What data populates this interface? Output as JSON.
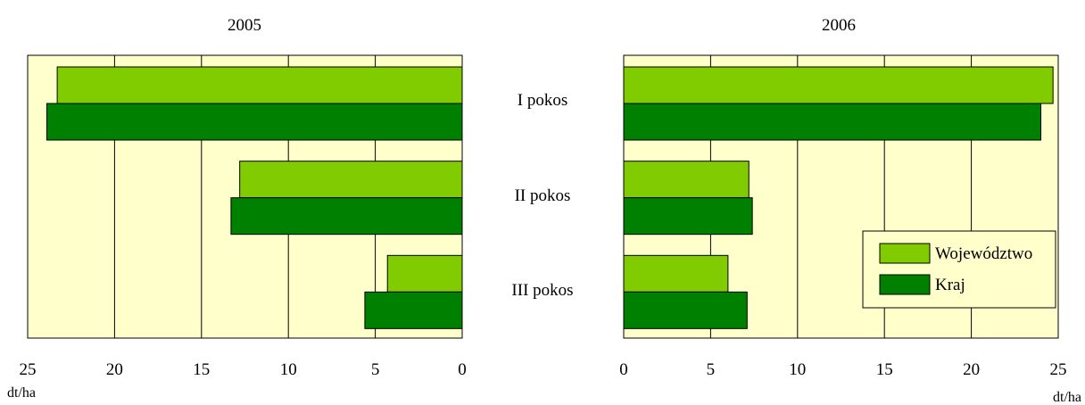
{
  "chart_data": [
    {
      "type": "bar",
      "orientation": "horizontal",
      "title": "2005",
      "categories": [
        "I pokos",
        "II pokos",
        "III pokos"
      ],
      "series": [
        {
          "name": "Województwo",
          "values": [
            23.3,
            12.8,
            4.3
          ],
          "color": "#80cc00"
        },
        {
          "name": "Kraj",
          "values": [
            23.9,
            13.3,
            5.6
          ],
          "color": "#008000"
        }
      ],
      "xlim": [
        25,
        0
      ],
      "xticks": [
        "25",
        "20",
        "15",
        "10",
        "5",
        "0"
      ],
      "unit": "dt/ha",
      "grid": true,
      "background": "#ffffcc"
    },
    {
      "type": "bar",
      "orientation": "horizontal",
      "title": "2006",
      "categories": [
        "I pokos",
        "II pokos",
        "III pokos"
      ],
      "series": [
        {
          "name": "Województwo",
          "values": [
            24.7,
            7.2,
            6.0
          ],
          "color": "#80cc00"
        },
        {
          "name": "Kraj",
          "values": [
            24.0,
            7.4,
            7.1
          ],
          "color": "#008000"
        }
      ],
      "xlim": [
        0,
        25
      ],
      "xticks": [
        "0",
        "5",
        "10",
        "15",
        "20",
        "25"
      ],
      "unit": "dt/ha",
      "grid": true,
      "background": "#ffffcc",
      "legend": {
        "position": "bottom-right",
        "entries": [
          "Województwo",
          "Kraj"
        ]
      }
    }
  ]
}
